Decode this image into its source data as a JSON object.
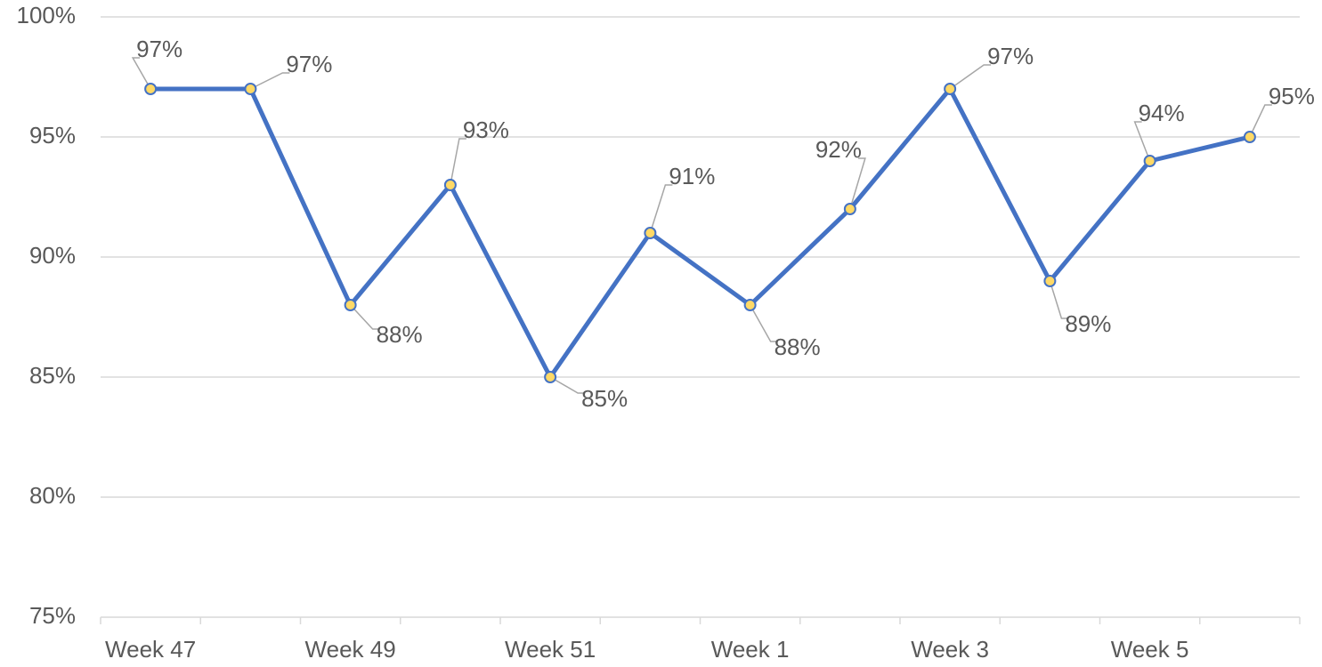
{
  "chart_data": {
    "type": "line",
    "categories": [
      "Week 47",
      null,
      "Week 49",
      null,
      "Week 51",
      null,
      "Week 1",
      null,
      "Week 3",
      null,
      "Week 5",
      null
    ],
    "series": [
      {
        "color": "#4472c4",
        "marker_color": "#ffd966",
        "values": [
          97,
          97,
          88,
          93,
          85,
          91,
          88,
          92,
          97,
          89,
          94,
          95
        ],
        "value_labels": [
          "97%",
          "97%",
          "88%",
          "93%",
          "85%",
          "91%",
          "88%",
          "92%",
          "97%",
          "89%",
          "94%",
          "95%"
        ]
      }
    ],
    "ylim": [
      75,
      100
    ],
    "yticks": [
      {
        "value": 75,
        "label": "75%"
      },
      {
        "value": 80,
        "label": "80%"
      },
      {
        "value": 85,
        "label": "85%"
      },
      {
        "value": 90,
        "label": "90%"
      },
      {
        "value": 95,
        "label": "95%"
      },
      {
        "value": 100,
        "label": "100%"
      }
    ],
    "grid": true
  }
}
